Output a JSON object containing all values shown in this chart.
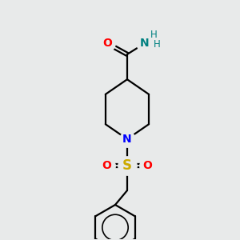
{
  "background_color": "#e8eaea",
  "bond_color": "#000000",
  "bond_width": 1.6,
  "atom_colors": {
    "O": "#ff0000",
    "N_amide": "#008080",
    "N_pipe": "#0000ff",
    "S": "#ccaa00",
    "C": "#000000",
    "H": "#008080"
  },
  "font_size_atoms": 10,
  "font_size_H": 8.5,
  "figsize": [
    3.0,
    3.0
  ],
  "dpi": 100,
  "xlim": [
    0,
    10
  ],
  "ylim": [
    0,
    10
  ]
}
